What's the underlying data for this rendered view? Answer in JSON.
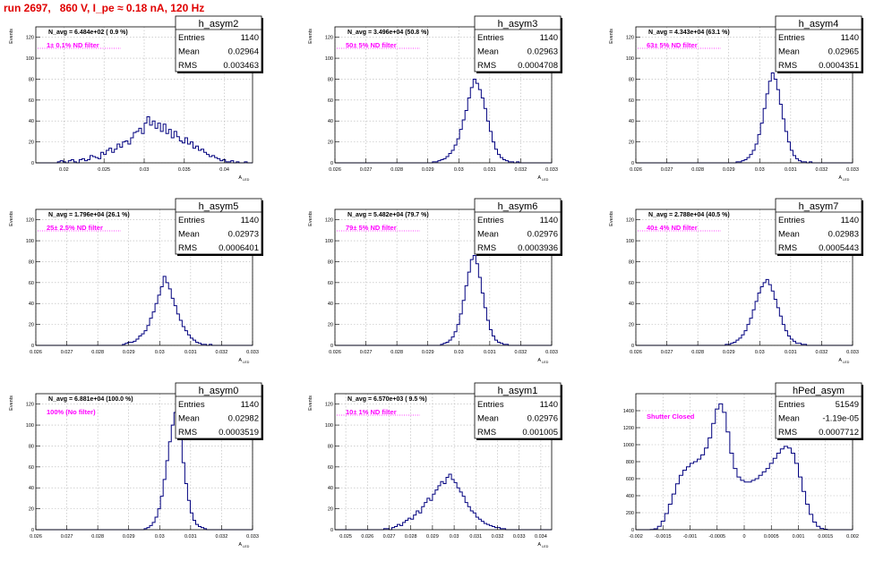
{
  "page": {
    "title": "run 2697,   860 V, I_pe ≈ 0.18 nA, 120 Hz"
  },
  "chart_data": [
    {
      "type": "histogram",
      "name": "h_asym2",
      "ylabel": "Events",
      "xlabel": "A",
      "xlabel_sub": "LED",
      "avg_label": "N_avg = 6.484e+02 ( 0.9 %)",
      "filter_label": "1± 0.1% ND filter",
      "filter_underline": true,
      "stats": [
        {
          "label": "Entries",
          "value": "1140"
        },
        {
          "label": "Mean",
          "value": "0.02964"
        },
        {
          "label": "RMS",
          "value": "0.003463"
        }
      ],
      "xlim": [
        0.0165,
        0.0435
      ],
      "ylim": [
        0,
        130
      ],
      "xticks": [
        "0.02",
        "0.025",
        "0.03",
        "0.035",
        "0.04"
      ],
      "xtick_values": [
        0.02,
        0.025,
        0.03,
        0.035,
        0.04
      ],
      "yticks": [
        "0",
        "20",
        "40",
        "60",
        "80",
        "100",
        "120"
      ],
      "ytick_values": [
        0,
        20,
        40,
        60,
        80,
        100,
        120
      ],
      "peak": 44,
      "counts": [
        0,
        0,
        0,
        0,
        0,
        0,
        0,
        0,
        1,
        2,
        1,
        0,
        2,
        3,
        1,
        0,
        3,
        4,
        2,
        3,
        7,
        6,
        5,
        4,
        10,
        8,
        12,
        14,
        10,
        13,
        18,
        15,
        20,
        21,
        18,
        24,
        29,
        30,
        33,
        28,
        38,
        44,
        36,
        40,
        33,
        38,
        30,
        37,
        28,
        32,
        24,
        30,
        25,
        21,
        19,
        24,
        18,
        20,
        14,
        16,
        12,
        13,
        10,
        8,
        6,
        7,
        5,
        4,
        2,
        3,
        1,
        1,
        2,
        0,
        1,
        0,
        0,
        1,
        0,
        0
      ]
    },
    {
      "type": "histogram",
      "name": "h_asym3",
      "ylabel": "Events",
      "xlabel": "A",
      "xlabel_sub": "LED",
      "avg_label": "N_avg = 3.496e+04 (50.8 %)",
      "filter_label": "50± 5% ND filter",
      "filter_underline": true,
      "stats": [
        {
          "label": "Entries",
          "value": "1140"
        },
        {
          "label": "Mean",
          "value": "0.02963"
        },
        {
          "label": "RMS",
          "value": "0.0004708"
        }
      ],
      "xlim": [
        0.026,
        0.033
      ],
      "ylim": [
        0,
        130
      ],
      "xticks": [
        "0.026",
        "0.027",
        "0.028",
        "0.029",
        "0.03",
        "0.031",
        "0.032",
        "0.033"
      ],
      "xtick_values": [
        0.026,
        0.027,
        0.028,
        0.029,
        0.03,
        0.031,
        0.032,
        0.033
      ],
      "yticks": [
        "0",
        "20",
        "40",
        "60",
        "80",
        "100",
        "120"
      ],
      "ytick_values": [
        0,
        20,
        40,
        60,
        80,
        100,
        120
      ],
      "peak": 80,
      "counts": [
        0,
        0,
        0,
        0,
        0,
        0,
        0,
        0,
        0,
        0,
        0,
        0,
        0,
        0,
        0,
        0,
        0,
        0,
        0,
        0,
        0,
        0,
        0,
        0,
        0,
        0,
        0,
        0,
        0,
        0,
        0,
        0,
        0,
        0,
        0,
        0,
        1,
        1,
        2,
        3,
        4,
        6,
        9,
        12,
        17,
        23,
        32,
        41,
        50,
        62,
        72,
        80,
        76,
        70,
        62,
        52,
        40,
        30,
        20,
        13,
        8,
        5,
        3,
        2,
        1,
        1,
        0,
        1,
        0,
        0,
        0,
        0,
        0,
        0,
        0,
        0,
        0,
        0,
        0,
        0
      ]
    },
    {
      "type": "histogram",
      "name": "h_asym4",
      "ylabel": "Events",
      "xlabel": "A",
      "xlabel_sub": "LED",
      "avg_label": "N_avg = 4.343e+04 (63.1 %)",
      "filter_label": "63± 5% ND filter",
      "filter_underline": true,
      "stats": [
        {
          "label": "Entries",
          "value": "1140"
        },
        {
          "label": "Mean",
          "value": "0.02965"
        },
        {
          "label": "RMS",
          "value": "0.0004351"
        }
      ],
      "xlim": [
        0.026,
        0.033
      ],
      "ylim": [
        0,
        130
      ],
      "xticks": [
        "0.026",
        "0.027",
        "0.028",
        "0.029",
        "0.03",
        "0.031",
        "0.032",
        "0.033"
      ],
      "xtick_values": [
        0.026,
        0.027,
        0.028,
        0.029,
        0.03,
        0.031,
        0.032,
        0.033
      ],
      "yticks": [
        "0",
        "20",
        "40",
        "60",
        "80",
        "100",
        "120"
      ],
      "ytick_values": [
        0,
        20,
        40,
        60,
        80,
        100,
        120
      ],
      "peak": 86,
      "counts": [
        0,
        0,
        0,
        0,
        0,
        0,
        0,
        0,
        0,
        0,
        0,
        0,
        0,
        0,
        0,
        0,
        0,
        0,
        0,
        0,
        0,
        0,
        0,
        0,
        0,
        0,
        0,
        0,
        0,
        0,
        0,
        0,
        0,
        0,
        0,
        0,
        0,
        1,
        1,
        2,
        3,
        5,
        8,
        12,
        18,
        27,
        38,
        52,
        66,
        78,
        86,
        80,
        70,
        56,
        42,
        30,
        20,
        12,
        7,
        4,
        2,
        1,
        1,
        0,
        1,
        0,
        0,
        0,
        0,
        0,
        0,
        0,
        0,
        0,
        0,
        0,
        0,
        0,
        0,
        0
      ]
    },
    {
      "type": "histogram",
      "name": "h_asym5",
      "ylabel": "Events",
      "xlabel": "A",
      "xlabel_sub": "LED",
      "avg_label": "N_avg = 1.796e+04 (26.1 %)",
      "filter_label": "25± 2.5% ND filter",
      "filter_underline": true,
      "stats": [
        {
          "label": "Entries",
          "value": "1140"
        },
        {
          "label": "Mean",
          "value": "0.02973"
        },
        {
          "label": "RMS",
          "value": "0.0006401"
        }
      ],
      "xlim": [
        0.026,
        0.033
      ],
      "ylim": [
        0,
        130
      ],
      "xticks": [
        "0.026",
        "0.027",
        "0.028",
        "0.029",
        "0.03",
        "0.031",
        "0.032",
        "0.033"
      ],
      "xtick_values": [
        0.026,
        0.027,
        0.028,
        0.029,
        0.03,
        0.031,
        0.032,
        0.033
      ],
      "yticks": [
        "0",
        "20",
        "40",
        "60",
        "80",
        "100",
        "120"
      ],
      "ytick_values": [
        0,
        20,
        40,
        60,
        80,
        100,
        120
      ],
      "peak": 66,
      "counts": [
        0,
        0,
        0,
        0,
        0,
        0,
        0,
        0,
        0,
        0,
        0,
        0,
        0,
        0,
        0,
        0,
        0,
        0,
        0,
        0,
        0,
        0,
        0,
        0,
        0,
        0,
        0,
        0,
        0,
        0,
        0,
        0,
        1,
        2,
        3,
        3,
        4,
        6,
        9,
        11,
        14,
        19,
        26,
        32,
        40,
        48,
        56,
        66,
        60,
        54,
        45,
        38,
        30,
        24,
        18,
        14,
        10,
        7,
        5,
        3,
        2,
        1,
        1,
        0,
        1,
        0,
        0,
        0,
        0,
        0,
        0,
        0,
        0,
        0,
        0,
        0,
        0,
        0,
        0,
        0
      ]
    },
    {
      "type": "histogram",
      "name": "h_asym6",
      "ylabel": "Events",
      "xlabel": "A",
      "xlabel_sub": "LED",
      "avg_label": "N_avg = 5.482e+04 (79.7 %)",
      "filter_label": "79± 5% ND filter",
      "filter_underline": true,
      "stats": [
        {
          "label": "Entries",
          "value": "1140"
        },
        {
          "label": "Mean",
          "value": "0.02976"
        },
        {
          "label": "RMS",
          "value": "0.0003936"
        }
      ],
      "xlim": [
        0.026,
        0.033
      ],
      "ylim": [
        0,
        130
      ],
      "xticks": [
        "0.026",
        "0.027",
        "0.028",
        "0.029",
        "0.03",
        "0.031",
        "0.032",
        "0.033"
      ],
      "xtick_values": [
        0.026,
        0.027,
        0.028,
        0.029,
        0.03,
        0.031,
        0.032,
        0.033
      ],
      "yticks": [
        "0",
        "20",
        "40",
        "60",
        "80",
        "100",
        "120"
      ],
      "ytick_values": [
        0,
        20,
        40,
        60,
        80,
        100,
        120
      ],
      "peak": 86,
      "counts": [
        0,
        0,
        0,
        0,
        0,
        0,
        0,
        0,
        0,
        0,
        0,
        0,
        0,
        0,
        0,
        0,
        0,
        0,
        0,
        0,
        0,
        0,
        0,
        0,
        0,
        0,
        0,
        0,
        0,
        0,
        0,
        0,
        0,
        0,
        0,
        0,
        0,
        0,
        0,
        1,
        2,
        3,
        5,
        8,
        13,
        20,
        30,
        43,
        57,
        70,
        82,
        86,
        78,
        65,
        50,
        36,
        24,
        15,
        9,
        5,
        3,
        2,
        1,
        1,
        0,
        0,
        0,
        0,
        0,
        0,
        0,
        0,
        0,
        0,
        0,
        0,
        0,
        0,
        0,
        0
      ]
    },
    {
      "type": "histogram",
      "name": "h_asym7",
      "ylabel": "Events",
      "xlabel": "A",
      "xlabel_sub": "LED",
      "avg_label": "N_avg = 2.788e+04 (40.5 %)",
      "filter_label": "40± 4% ND filter",
      "filter_underline": true,
      "stats": [
        {
          "label": "Entries",
          "value": "1140"
        },
        {
          "label": "Mean",
          "value": "0.02983"
        },
        {
          "label": "RMS",
          "value": "0.0005443"
        }
      ],
      "xlim": [
        0.026,
        0.033
      ],
      "ylim": [
        0,
        130
      ],
      "xticks": [
        "0.026",
        "0.027",
        "0.028",
        "0.029",
        "0.03",
        "0.031",
        "0.032",
        "0.033"
      ],
      "xtick_values": [
        0.026,
        0.027,
        0.028,
        0.029,
        0.03,
        0.031,
        0.032,
        0.033
      ],
      "yticks": [
        "0",
        "20",
        "40",
        "60",
        "80",
        "100",
        "120"
      ],
      "ytick_values": [
        0,
        20,
        40,
        60,
        80,
        100,
        120
      ],
      "peak": 63,
      "counts": [
        0,
        0,
        0,
        0,
        0,
        0,
        0,
        0,
        0,
        0,
        0,
        0,
        0,
        0,
        0,
        0,
        0,
        0,
        0,
        0,
        0,
        0,
        0,
        0,
        0,
        0,
        0,
        0,
        0,
        0,
        0,
        0,
        0,
        1,
        1,
        2,
        3,
        5,
        7,
        10,
        14,
        20,
        26,
        34,
        42,
        50,
        56,
        60,
        63,
        58,
        52,
        44,
        36,
        28,
        20,
        14,
        9,
        6,
        4,
        2,
        2,
        1,
        1,
        0,
        0,
        0,
        0,
        0,
        0,
        0,
        0,
        0,
        0,
        0,
        0,
        0,
        0,
        0,
        0,
        0
      ]
    },
    {
      "type": "histogram",
      "name": "h_asym0",
      "ylabel": "Events",
      "xlabel": "A",
      "xlabel_sub": "LED",
      "avg_label": "N_avg = 6.881e+04 (100.0 %)",
      "filter_label": "100% (No filter)",
      "filter_underline": false,
      "stats": [
        {
          "label": "Entries",
          "value": "1140"
        },
        {
          "label": "Mean",
          "value": "0.02982"
        },
        {
          "label": "RMS",
          "value": "0.0003519"
        }
      ],
      "xlim": [
        0.026,
        0.033
      ],
      "ylim": [
        0,
        130
      ],
      "xticks": [
        "0.026",
        "0.027",
        "0.028",
        "0.029",
        "0.03",
        "0.031",
        "0.032",
        "0.033"
      ],
      "xtick_values": [
        0.026,
        0.027,
        0.028,
        0.029,
        0.03,
        0.031,
        0.032,
        0.033
      ],
      "yticks": [
        "0",
        "20",
        "40",
        "60",
        "80",
        "100",
        "120"
      ],
      "ytick_values": [
        0,
        20,
        40,
        60,
        80,
        100,
        120
      ],
      "peak": 112,
      "counts": [
        0,
        0,
        0,
        0,
        0,
        0,
        0,
        0,
        0,
        0,
        0,
        0,
        0,
        0,
        0,
        0,
        0,
        0,
        0,
        0,
        0,
        0,
        0,
        0,
        0,
        0,
        0,
        0,
        0,
        0,
        0,
        0,
        0,
        0,
        0,
        0,
        0,
        0,
        0,
        0,
        1,
        2,
        4,
        7,
        12,
        20,
        32,
        48,
        66,
        84,
        100,
        112,
        104,
        86,
        64,
        44,
        28,
        16,
        9,
        5,
        3,
        2,
        1,
        0,
        0,
        0,
        0,
        0,
        0,
        0,
        0,
        0,
        0,
        0,
        0,
        0,
        0,
        0,
        0,
        0
      ]
    },
    {
      "type": "histogram",
      "name": "h_asym1",
      "ylabel": "Events",
      "xlabel": "A",
      "xlabel_sub": "LED",
      "avg_label": "N_avg = 6.570e+03 ( 9.5 %)",
      "filter_label": "10± 1% ND filter",
      "filter_underline": true,
      "stats": [
        {
          "label": "Entries",
          "value": "1140"
        },
        {
          "label": "Mean",
          "value": "0.02976"
        },
        {
          "label": "RMS",
          "value": "0.001005"
        }
      ],
      "xlim": [
        0.0245,
        0.0345
      ],
      "ylim": [
        0,
        130
      ],
      "xticks": [
        "0.025",
        "0.026",
        "0.027",
        "0.028",
        "0.029",
        "0.03",
        "0.031",
        "0.032",
        "0.033",
        "0.034"
      ],
      "xtick_values": [
        0.025,
        0.026,
        0.027,
        0.028,
        0.029,
        0.03,
        0.031,
        0.032,
        0.033,
        0.034
      ],
      "yticks": [
        "0",
        "20",
        "40",
        "60",
        "80",
        "100",
        "120"
      ],
      "ytick_values": [
        0,
        20,
        40,
        60,
        80,
        100,
        120
      ],
      "peak": 53,
      "counts": [
        0,
        0,
        0,
        0,
        0,
        0,
        0,
        0,
        0,
        0,
        0,
        0,
        0,
        0,
        0,
        0,
        0,
        0,
        1,
        1,
        0,
        2,
        3,
        5,
        4,
        7,
        9,
        11,
        10,
        14,
        18,
        16,
        22,
        26,
        30,
        28,
        34,
        38,
        42,
        46,
        44,
        50,
        53,
        48,
        45,
        40,
        36,
        32,
        26,
        22,
        18,
        16,
        12,
        10,
        8,
        6,
        5,
        4,
        3,
        2,
        2,
        1,
        1,
        0,
        0,
        0,
        0,
        0,
        0,
        0,
        0,
        0,
        0,
        0,
        0,
        0,
        0,
        0,
        0,
        0
      ]
    },
    {
      "type": "histogram",
      "name": "hPed_asym",
      "ylabel": "",
      "xlabel": "",
      "xlabel_sub": "",
      "avg_label": "",
      "filter_label": "Shutter Closed",
      "filter_underline": false,
      "stats": [
        {
          "label": "Entries",
          "value": "51549"
        },
        {
          "label": "Mean",
          "value": "-1.19e-05"
        },
        {
          "label": "RMS",
          "value": "0.0007712"
        }
      ],
      "xlim": [
        -0.002,
        0.002
      ],
      "ylim": [
        0,
        1600
      ],
      "xticks": [
        "-0.002",
        "-0.0015",
        "-0.001",
        "-0.0005",
        "0",
        "0.0005",
        "0.001",
        "0.0015",
        "0.002"
      ],
      "xtick_values": [
        -0.002,
        -0.0015,
        -0.001,
        -0.0005,
        0,
        0.0005,
        0.001,
        0.0015,
        0.002
      ],
      "yticks": [
        "0",
        "200",
        "400",
        "600",
        "800",
        "1000",
        "1200",
        "1400"
      ],
      "ytick_values": [
        0,
        200,
        400,
        600,
        800,
        1000,
        1200,
        1400
      ],
      "peak": 1480,
      "counts": [
        0,
        0,
        0,
        0,
        2,
        10,
        40,
        100,
        190,
        300,
        420,
        540,
        640,
        700,
        740,
        780,
        800,
        830,
        880,
        960,
        1080,
        1250,
        1420,
        1480,
        1380,
        1150,
        900,
        720,
        620,
        580,
        560,
        560,
        580,
        600,
        640,
        680,
        720,
        780,
        840,
        900,
        950,
        980,
        960,
        900,
        780,
        620,
        450,
        300,
        180,
        90,
        40,
        15,
        5,
        0,
        0,
        0,
        0,
        0,
        0,
        0
      ]
    }
  ]
}
